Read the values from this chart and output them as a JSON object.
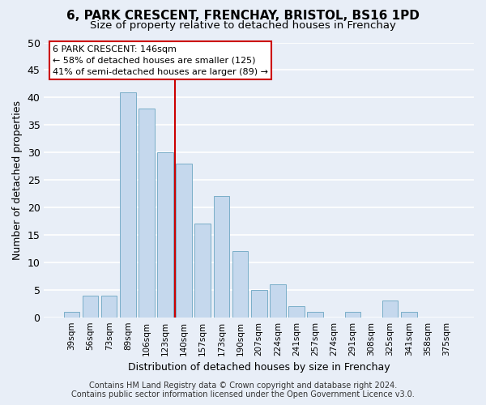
{
  "title": "6, PARK CRESCENT, FRENCHAY, BRISTOL, BS16 1PD",
  "subtitle": "Size of property relative to detached houses in Frenchay",
  "xlabel": "Distribution of detached houses by size in Frenchay",
  "ylabel": "Number of detached properties",
  "categories": [
    "39sqm",
    "56sqm",
    "73sqm",
    "89sqm",
    "106sqm",
    "123sqm",
    "140sqm",
    "157sqm",
    "173sqm",
    "190sqm",
    "207sqm",
    "224sqm",
    "241sqm",
    "257sqm",
    "274sqm",
    "291sqm",
    "308sqm",
    "325sqm",
    "341sqm",
    "358sqm",
    "375sqm"
  ],
  "values": [
    1,
    4,
    4,
    41,
    38,
    30,
    28,
    17,
    22,
    12,
    5,
    6,
    2,
    1,
    0,
    1,
    0,
    3,
    1,
    0,
    0
  ],
  "bar_color": "#c5d8ed",
  "bar_edge_color": "#7aaec8",
  "background_color": "#e8eef7",
  "grid_color": "#ffffff",
  "vline_color": "#cc0000",
  "annotation_text": "6 PARK CRESCENT: 146sqm\n← 58% of detached houses are smaller (125)\n41% of semi-detached houses are larger (89) →",
  "annotation_box_color": "#ffffff",
  "annotation_box_edge": "#cc0000",
  "ylim": [
    0,
    50
  ],
  "yticks": [
    0,
    5,
    10,
    15,
    20,
    25,
    30,
    35,
    40,
    45,
    50
  ],
  "footer_line1": "Contains HM Land Registry data © Crown copyright and database right 2024.",
  "footer_line2": "Contains public sector information licensed under the Open Government Licence v3.0.",
  "title_fontsize": 11,
  "subtitle_fontsize": 9.5
}
